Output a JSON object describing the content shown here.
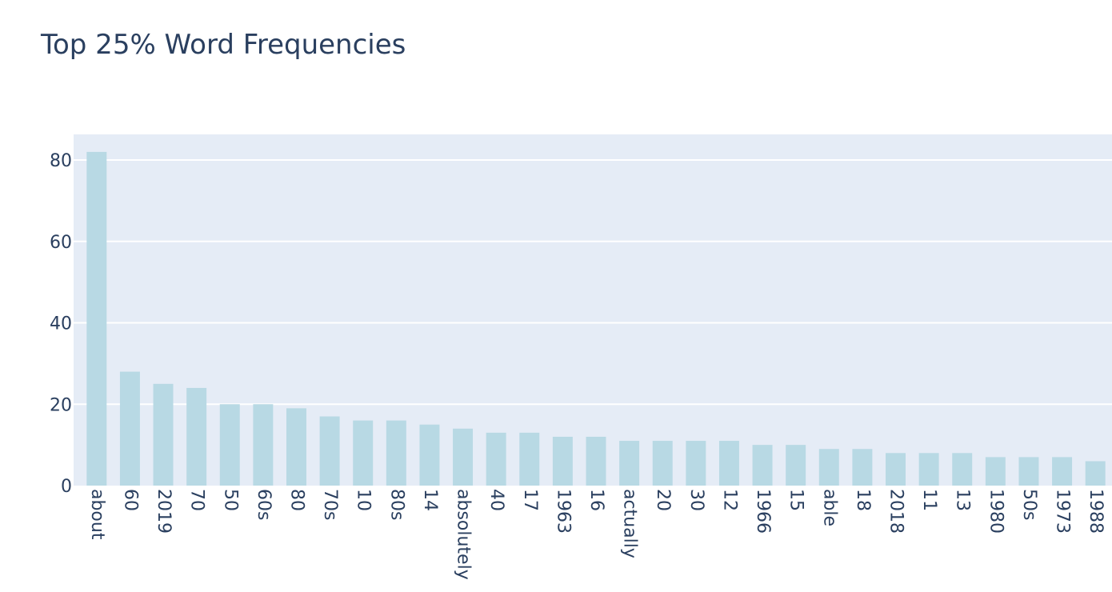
{
  "chart_data": {
    "type": "bar",
    "title": "Top 25% Word Frequencies",
    "xlabel": "",
    "ylabel": "",
    "categories": [
      "about",
      "60",
      "2019",
      "70",
      "50",
      "60s",
      "80",
      "70s",
      "10",
      "80s",
      "14",
      "absolutely",
      "40",
      "17",
      "1963",
      "16",
      "actually",
      "20",
      "30",
      "12",
      "1966",
      "15",
      "able",
      "18",
      "2018",
      "11",
      "13",
      "1980",
      "50s",
      "1973",
      "1988"
    ],
    "values": [
      82,
      28,
      25,
      24,
      20,
      20,
      19,
      17,
      16,
      16,
      15,
      14,
      13,
      13,
      12,
      12,
      11,
      11,
      11,
      11,
      10,
      10,
      9,
      9,
      8,
      8,
      8,
      7,
      7,
      7,
      6
    ],
    "ylim": [
      0,
      86.3
    ],
    "yticks": [
      0,
      20,
      40,
      60,
      80
    ],
    "grid": true,
    "legend": "none",
    "bar_color": "#b8d9e4",
    "plot_bg": "#e5ecf6",
    "gridline_color": "#ffffff",
    "text_color": "#2a3f5f"
  }
}
